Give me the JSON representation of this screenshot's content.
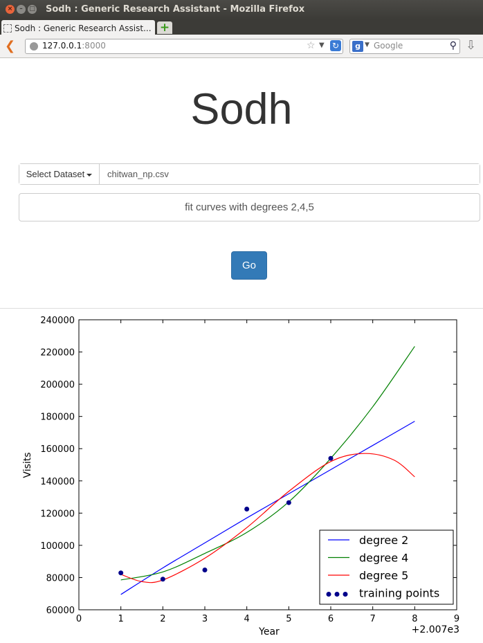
{
  "window": {
    "title": "Sodh : Generic Research Assistant - Mozilla Firefox"
  },
  "tab": {
    "label": "Sodh : Generic Research Assist..."
  },
  "nav": {
    "url_host": "127.0.0.1",
    "url_port": ":8000",
    "search_placeholder": "Google"
  },
  "page": {
    "title": "Sodh",
    "dataset_button": "Select Dataset",
    "dataset_value": "chitwan_np.csv",
    "query_value": "fit curves with degrees 2,4,5",
    "go_label": "Go"
  },
  "chart_data": {
    "type": "line",
    "xlabel": "Year",
    "ylabel": "Visits",
    "x_offset_label": "+2.007e3",
    "xlim": [
      0,
      9
    ],
    "ylim": [
      60000,
      240000
    ],
    "x_ticks": [
      0,
      1,
      2,
      3,
      4,
      5,
      6,
      7,
      8,
      9
    ],
    "y_ticks": [
      60000,
      80000,
      100000,
      120000,
      140000,
      160000,
      180000,
      200000,
      220000,
      240000
    ],
    "legend_position": "lower-right",
    "series": [
      {
        "name": "degree 2",
        "color": "#0000ff",
        "x": [
          1,
          2,
          3,
          4,
          5,
          6,
          7,
          8
        ],
        "y": [
          69500,
          86000,
          101500,
          117000,
          132000,
          147000,
          162000,
          177000
        ]
      },
      {
        "name": "degree 4",
        "color": "#008000",
        "x": [
          1,
          2,
          3,
          4,
          5,
          6,
          7,
          8
        ],
        "y": [
          78500,
          83500,
          95000,
          108000,
          127000,
          154000,
          186000,
          223500
        ]
      },
      {
        "name": "degree 5",
        "color": "#ff0000",
        "x": [
          1,
          1.5,
          2,
          3,
          4,
          5,
          6,
          6.8,
          7.5,
          8
        ],
        "y": [
          82000,
          77500,
          78500,
          92000,
          111000,
          133500,
          152000,
          157000,
          153000,
          142500
        ]
      }
    ],
    "points": {
      "name": "training points",
      "color": "#00008b",
      "x": [
        1,
        2,
        3,
        4,
        5,
        6
      ],
      "y": [
        82900,
        79000,
        84700,
        122500,
        126500,
        154000
      ]
    }
  }
}
